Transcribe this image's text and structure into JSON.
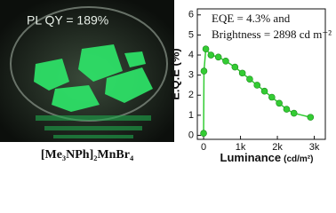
{
  "photo": {
    "caption": "PL QY = 189%",
    "label": "[Me₃NPh]₂MnBr₄"
  },
  "chart_data": {
    "type": "line",
    "y_label": "E.Q.E (%)",
    "x_label": "Luminance",
    "x_unit": "(cd/m²)",
    "annotation": [
      "EQE = 4.3% and",
      "Brightness = 2898 cd m⁻²"
    ],
    "x": [
      0,
      10,
      60,
      200,
      400,
      600,
      850,
      1050,
      1250,
      1450,
      1650,
      1850,
      2050,
      2250,
      2450,
      2898
    ],
    "series": [
      {
        "name": "EQE",
        "color": "#33cc33",
        "values": [
          0.1,
          3.2,
          4.3,
          4.0,
          3.9,
          3.7,
          3.4,
          3.1,
          2.8,
          2.5,
          2.2,
          1.9,
          1.6,
          1.3,
          1.1,
          0.9
        ]
      }
    ],
    "xlim": [
      -170,
      3300
    ],
    "ylim": [
      -0.2,
      6.3
    ],
    "xticks": [
      {
        "value": 0,
        "label": "0"
      },
      {
        "value": 1000,
        "label": "1k"
      },
      {
        "value": 2000,
        "label": "2k"
      },
      {
        "value": 3000,
        "label": "3k"
      }
    ],
    "yticks": [
      0,
      1,
      2,
      3,
      4,
      5,
      6
    ]
  }
}
